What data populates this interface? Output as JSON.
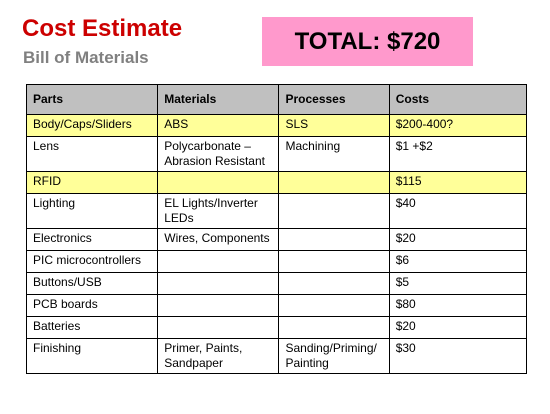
{
  "slide": {
    "title": "Cost Estimate",
    "subtitle": "Bill of Materials",
    "total": "TOTAL: $720",
    "colors": {
      "title": "#cc0000",
      "subtitle": "#808080",
      "total_bg": "#ff99cc",
      "header_bg": "#c0c0c0",
      "highlight_bg": "#ffff99"
    }
  },
  "table": {
    "headers": [
      "Parts",
      "Materials",
      "Processes",
      "Costs"
    ],
    "rows": [
      {
        "highlight": true,
        "cells": [
          "Body/Caps/Sliders",
          "ABS",
          "SLS",
          "$200-400?"
        ]
      },
      {
        "highlight": false,
        "cells": [
          "Lens",
          "Polycarbonate – Abrasion Resistant",
          "Machining",
          "$1 +$2"
        ]
      },
      {
        "highlight": true,
        "cells": [
          "RFID",
          "",
          "",
          "$115"
        ]
      },
      {
        "highlight": false,
        "cells": [
          "Lighting",
          "EL Lights/Inverter LEDs",
          "",
          "$40"
        ]
      },
      {
        "highlight": false,
        "cells": [
          "Electronics",
          "Wires, Components",
          "",
          "$20"
        ]
      },
      {
        "highlight": false,
        "cells": [
          "PIC microcontrollers",
          "",
          "",
          "$6"
        ]
      },
      {
        "highlight": false,
        "cells": [
          "Buttons/USB",
          "",
          "",
          "$5"
        ]
      },
      {
        "highlight": false,
        "cells": [
          "PCB boards",
          "",
          "",
          "$80"
        ]
      },
      {
        "highlight": false,
        "cells": [
          "Batteries",
          "",
          "",
          "$20"
        ]
      },
      {
        "highlight": false,
        "cells": [
          "Finishing",
          "Primer, Paints, Sandpaper",
          "Sanding/Priming/ Painting",
          "$30"
        ]
      }
    ]
  }
}
